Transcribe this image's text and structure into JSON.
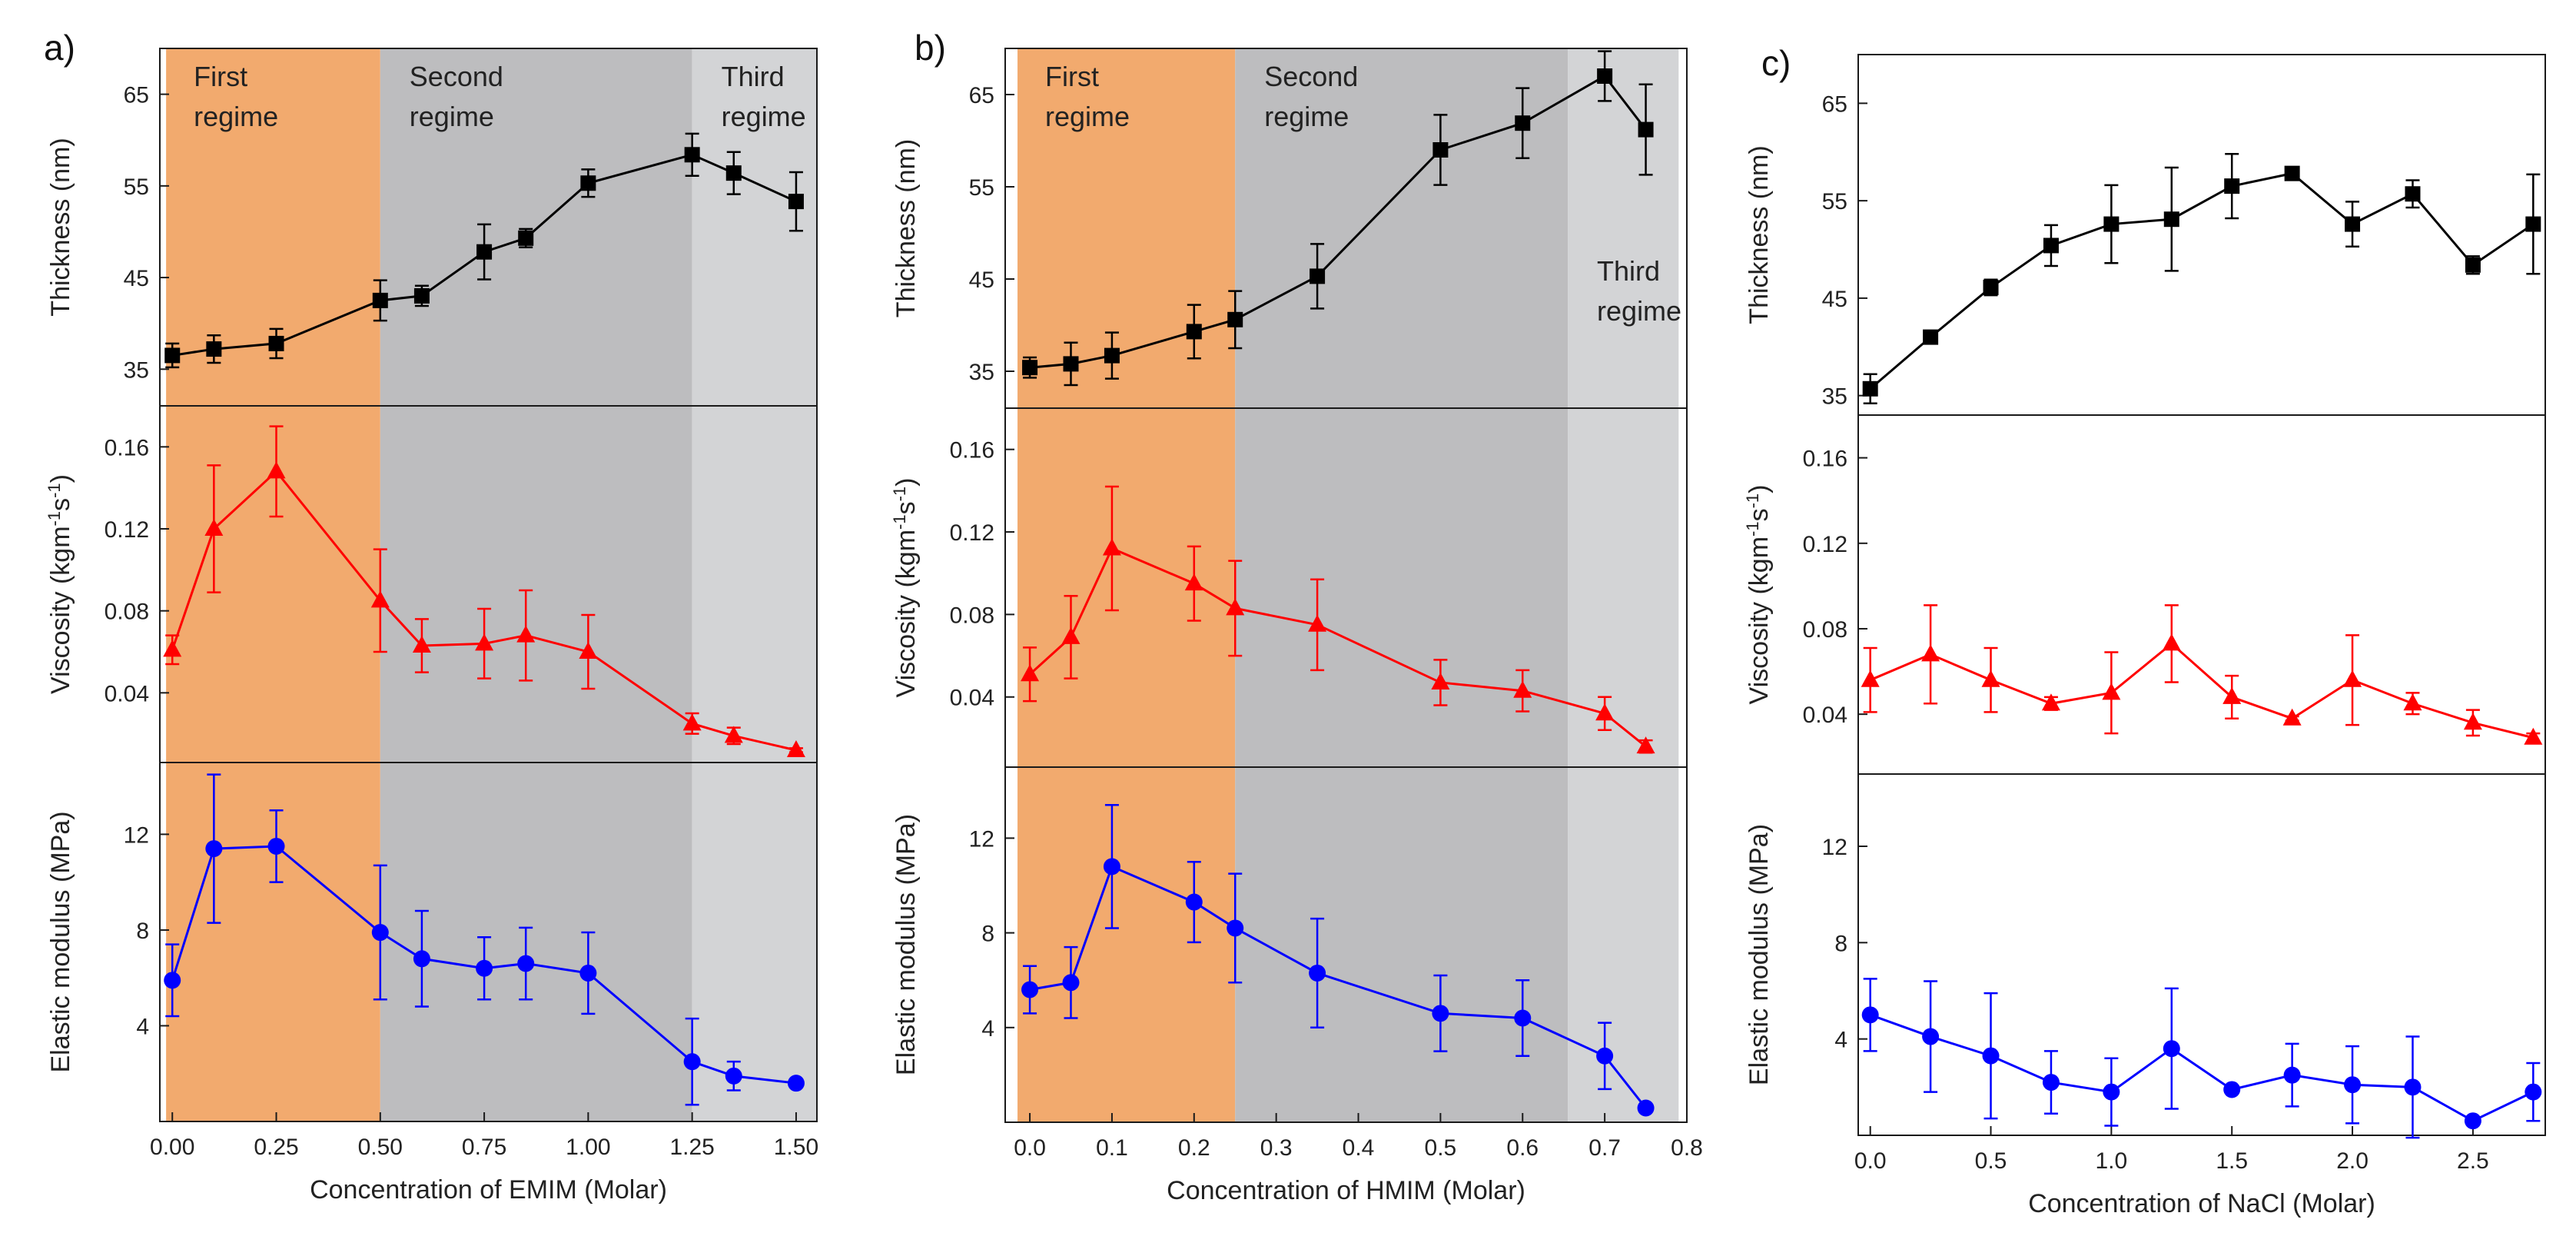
{
  "chart_data": [
    {
      "type": "line",
      "panel_label": "a)",
      "xlabel": "Concentration of EMIM (Molar)",
      "xlim": [
        -0.03,
        1.55
      ],
      "xticks": [
        0.0,
        0.25,
        0.5,
        0.75,
        1.0,
        1.25,
        1.5
      ],
      "xtick_labels": [
        "0.00",
        "0.25",
        "0.50",
        "0.75",
        "1.00",
        "1.25",
        "1.50"
      ],
      "regimes": [
        {
          "line1": "First",
          "line2": "regime",
          "x0": -0.015,
          "x1": 0.5,
          "color": "#f2aa6e",
          "label_pos": "top"
        },
        {
          "line1": "Second",
          "line2": "regime",
          "x0": 0.5,
          "x1": 1.25,
          "color": "#bdbdbf",
          "label_pos": "top"
        },
        {
          "line1": "Third",
          "line2": "regime",
          "x0": 1.25,
          "x1": 1.55,
          "color": "#d3d4d6",
          "label_pos": "top"
        }
      ],
      "series": [
        {
          "name": "Thickness",
          "ylabel": "Thickness (nm)",
          "color": "#000000",
          "marker": "square",
          "ylim": [
            31,
            70
          ],
          "yticks": [
            35,
            45,
            55,
            65
          ],
          "ytick_labels": [
            "35",
            "45",
            "55",
            "65"
          ],
          "x": [
            0.0,
            0.1,
            0.25,
            0.5,
            0.6,
            0.75,
            0.85,
            1.0,
            1.25,
            1.35,
            1.5
          ],
          "y": [
            36.5,
            37.2,
            37.8,
            42.5,
            43.0,
            47.8,
            49.3,
            55.3,
            58.4,
            56.4,
            53.3
          ],
          "err": [
            1.3,
            1.5,
            1.6,
            2.2,
            1.1,
            3.0,
            1.0,
            1.5,
            2.3,
            2.3,
            3.2
          ]
        },
        {
          "name": "Viscosity",
          "ylabel_main": "Viscosity (kgm",
          "ylabel_sup1": "-1",
          "ylabel_mid": "s",
          "ylabel_sup2": "-1",
          "ylabel_end": ")",
          "color": "#ff0000",
          "marker": "triangle",
          "ylim": [
            0.006,
            0.18
          ],
          "yticks": [
            0.04,
            0.08,
            0.12,
            0.16
          ],
          "ytick_labels": [
            "0.04",
            "0.08",
            "0.12",
            "0.16"
          ],
          "x": [
            0.0,
            0.1,
            0.25,
            0.5,
            0.6,
            0.75,
            0.85,
            1.0,
            1.25,
            1.35,
            1.5
          ],
          "y": [
            0.061,
            0.12,
            0.148,
            0.085,
            0.063,
            0.064,
            0.068,
            0.06,
            0.025,
            0.019,
            0.012
          ],
          "err": [
            0.007,
            0.031,
            0.022,
            0.025,
            0.013,
            0.017,
            0.022,
            0.018,
            0.005,
            0.004,
            0.001
          ]
        },
        {
          "name": "Elastic modulus",
          "ylabel": "Elastic modulus (MPa)",
          "color": "#0000ff",
          "marker": "circle",
          "ylim": [
            0,
            15
          ],
          "yticks": [
            4,
            8,
            12
          ],
          "ytick_labels": [
            "4",
            "8",
            "12"
          ],
          "x": [
            0.0,
            0.1,
            0.25,
            0.5,
            0.6,
            0.75,
            0.85,
            1.0,
            1.25,
            1.35,
            1.5
          ],
          "y": [
            5.9,
            11.4,
            11.5,
            7.9,
            6.8,
            6.4,
            6.6,
            6.2,
            2.5,
            1.9,
            1.6
          ],
          "err": [
            1.5,
            3.1,
            1.5,
            2.8,
            2.0,
            1.3,
            1.5,
            1.7,
            1.8,
            0.6,
            0.1
          ]
        }
      ]
    },
    {
      "type": "line",
      "panel_label": "b)",
      "xlabel": "Concentration of HMIM (Molar)",
      "xlim": [
        -0.03,
        0.8
      ],
      "xticks": [
        0.0,
        0.1,
        0.2,
        0.3,
        0.4,
        0.5,
        0.6,
        0.7,
        0.8
      ],
      "xtick_labels": [
        "0.0",
        "0.1",
        "0.2",
        "0.3",
        "0.4",
        "0.5",
        "0.6",
        "0.7",
        "0.8"
      ],
      "regimes": [
        {
          "line1": "First",
          "line2": "regime",
          "x0": -0.015,
          "x1": 0.25,
          "color": "#f2aa6e",
          "label_pos": "top"
        },
        {
          "line1": "Second",
          "line2": "regime",
          "x0": 0.25,
          "x1": 0.655,
          "color": "#bdbdbf",
          "label_pos": "top"
        },
        {
          "line1": "Third",
          "line2": "regime",
          "x0": 0.655,
          "x1": 0.79,
          "color": "#d3d4d6",
          "label_pos": "mid"
        }
      ],
      "series": [
        {
          "name": "Thickness",
          "ylabel": "Thickness (nm)",
          "color": "#000000",
          "marker": "square",
          "ylim": [
            31,
            70
          ],
          "yticks": [
            35,
            45,
            55,
            65
          ],
          "ytick_labels": [
            "35",
            "45",
            "55",
            "65"
          ],
          "x": [
            0.0,
            0.05,
            0.1,
            0.2,
            0.25,
            0.35,
            0.5,
            0.6,
            0.7,
            0.75
          ],
          "y": [
            35.4,
            35.8,
            36.7,
            39.3,
            40.6,
            45.3,
            59.0,
            61.9,
            67.0,
            61.2
          ],
          "err": [
            1.1,
            2.3,
            2.5,
            2.9,
            3.1,
            3.5,
            3.8,
            3.8,
            2.7,
            4.9
          ]
        },
        {
          "name": "Viscosity",
          "ylabel_main": "Viscosity (kgm",
          "ylabel_sup1": "-1",
          "ylabel_mid": "s",
          "ylabel_sup2": "-1",
          "ylabel_end": ")",
          "color": "#ff0000",
          "marker": "triangle",
          "ylim": [
            0.006,
            0.18
          ],
          "yticks": [
            0.04,
            0.08,
            0.12,
            0.16
          ],
          "ytick_labels": [
            "0.04",
            "0.08",
            "0.12",
            "0.16"
          ],
          "x": [
            0.0,
            0.05,
            0.1,
            0.2,
            0.25,
            0.35,
            0.5,
            0.6,
            0.7,
            0.75
          ],
          "y": [
            0.051,
            0.069,
            0.112,
            0.095,
            0.083,
            0.075,
            0.047,
            0.043,
            0.032,
            0.016
          ],
          "err": [
            0.013,
            0.02,
            0.03,
            0.018,
            0.023,
            0.022,
            0.011,
            0.01,
            0.008,
            0.003
          ]
        },
        {
          "name": "Elastic modulus",
          "ylabel": "Elastic modulus (MPa)",
          "color": "#0000ff",
          "marker": "circle",
          "ylim": [
            0,
            15
          ],
          "yticks": [
            4,
            8,
            12
          ],
          "ytick_labels": [
            "4",
            "8",
            "12"
          ],
          "x": [
            0.0,
            0.05,
            0.1,
            0.2,
            0.25,
            0.35,
            0.5,
            0.6,
            0.7,
            0.75
          ],
          "y": [
            5.6,
            5.9,
            10.8,
            9.3,
            8.2,
            6.3,
            4.6,
            4.4,
            2.8,
            0.6
          ],
          "err": [
            1.0,
            1.5,
            2.6,
            1.7,
            2.3,
            2.3,
            1.6,
            1.6,
            1.4,
            0.1
          ]
        }
      ]
    },
    {
      "type": "line",
      "panel_label": "c)",
      "xlabel": "Concentration of NaCl (Molar)",
      "xlim": [
        -0.05,
        2.8
      ],
      "xticks": [
        0.0,
        0.5,
        1.0,
        1.5,
        2.0,
        2.5
      ],
      "xtick_labels": [
        "0.0",
        "0.5",
        "1.0",
        "1.5",
        "2.0",
        "2.5"
      ],
      "regimes": [],
      "series": [
        {
          "name": "Thickness",
          "ylabel": "Thickness (nm)",
          "color": "#000000",
          "marker": "square",
          "ylim": [
            33,
            70
          ],
          "yticks": [
            35,
            45,
            55,
            65
          ],
          "ytick_labels": [
            "35",
            "45",
            "55",
            "65"
          ],
          "x": [
            0.0,
            0.25,
            0.5,
            0.75,
            1.0,
            1.25,
            1.5,
            1.75,
            2.0,
            2.25,
            2.5,
            2.75
          ],
          "y": [
            35.7,
            41.0,
            46.1,
            50.4,
            52.6,
            53.1,
            56.5,
            57.8,
            52.6,
            55.7,
            48.4,
            52.6
          ],
          "err": [
            1.5,
            0.4,
            0.8,
            2.1,
            4.0,
            5.3,
            3.3,
            0.4,
            2.3,
            1.4,
            0.9,
            5.1
          ]
        },
        {
          "name": "Viscosity",
          "ylabel_main": "Viscosity (kgm",
          "ylabel_sup1": "-1",
          "ylabel_mid": "s",
          "ylabel_sup2": "-1",
          "ylabel_end": ")",
          "color": "#ff0000",
          "marker": "triangle",
          "ylim": [
            0.012,
            0.18
          ],
          "yticks": [
            0.04,
            0.08,
            0.12,
            0.16
          ],
          "ytick_labels": [
            "0.04",
            "0.08",
            "0.12",
            "0.16"
          ],
          "x": [
            0.0,
            0.25,
            0.5,
            0.75,
            1.0,
            1.25,
            1.5,
            1.75,
            2.0,
            2.25,
            2.5,
            2.75
          ],
          "y": [
            0.056,
            0.068,
            0.056,
            0.045,
            0.05,
            0.073,
            0.048,
            0.038,
            0.056,
            0.045,
            0.036,
            0.029
          ],
          "err": [
            0.015,
            0.023,
            0.015,
            0.003,
            0.019,
            0.018,
            0.01,
            0.001,
            0.021,
            0.005,
            0.006,
            0.002
          ]
        },
        {
          "name": "Elastic modulus",
          "ylabel": "Elastic modulus (MPa)",
          "color": "#0000ff",
          "marker": "circle",
          "ylim": [
            0,
            15
          ],
          "yticks": [
            4,
            8,
            12
          ],
          "ytick_labels": [
            "4",
            "8",
            "12"
          ],
          "x": [
            0.0,
            0.25,
            0.5,
            0.75,
            1.0,
            1.25,
            1.5,
            1.75,
            2.0,
            2.25,
            2.5,
            2.75
          ],
          "y": [
            5.0,
            4.1,
            3.3,
            2.2,
            1.8,
            3.6,
            1.9,
            2.5,
            2.1,
            2.0,
            0.6,
            1.8
          ],
          "err": [
            1.5,
            2.3,
            2.6,
            1.3,
            1.4,
            2.5,
            0.1,
            1.3,
            1.6,
            2.1,
            0.1,
            1.2
          ]
        }
      ]
    }
  ]
}
